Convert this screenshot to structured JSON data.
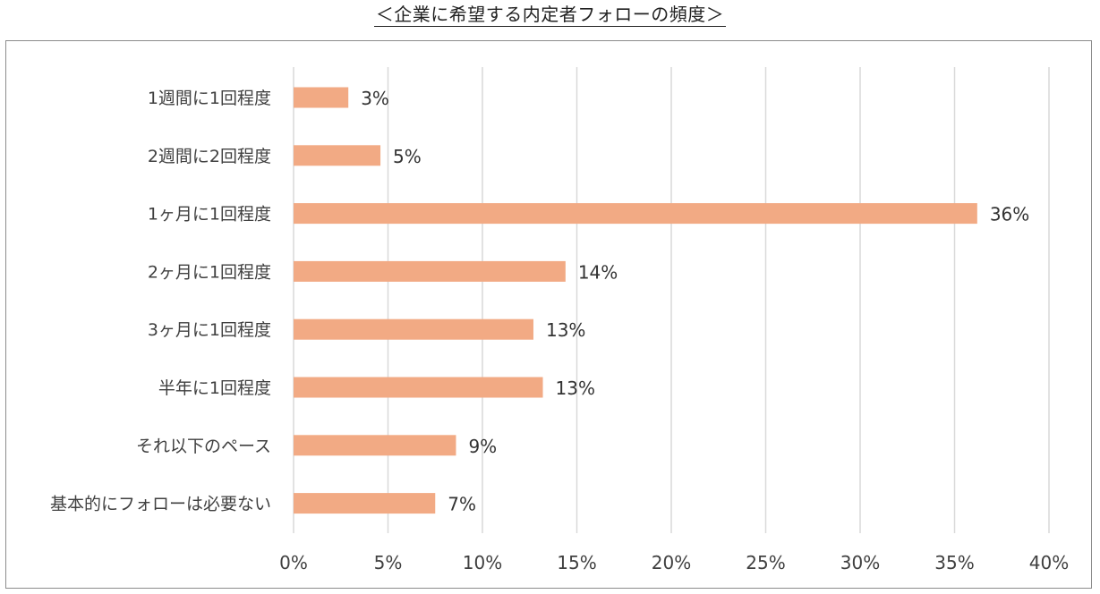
{
  "page": {
    "title": "＜企業に希望する内定者フォローの頻度＞"
  },
  "chart_data": {
    "type": "bar",
    "orientation": "horizontal",
    "title": "＜企業に希望する内定者フォローの頻度＞",
    "xlabel": "",
    "ylabel": "",
    "categories": [
      "1週間に1回程度",
      "2週間に2回程度",
      "1ヶ月に1回程度",
      "2ヶ月に1回程度",
      "3ヶ月に1回程度",
      "半年に1回程度",
      "それ以下のペース",
      "基本的にフォローは必要ない"
    ],
    "values": [
      2.9,
      4.6,
      36.2,
      14.4,
      12.7,
      13.2,
      8.6,
      7.5
    ],
    "value_labels": [
      "3%",
      "5%",
      "36%",
      "14%",
      "13%",
      "13%",
      "9%",
      "7%"
    ],
    "xlim": [
      0,
      40
    ],
    "ticks": [
      0,
      5,
      10,
      15,
      20,
      25,
      30,
      35,
      40
    ],
    "tick_labels": [
      "0%",
      "5%",
      "10%",
      "15%",
      "20%",
      "25%",
      "30%",
      "35%",
      "40%"
    ],
    "grid": "vertical",
    "legend": "none",
    "bar_color": "#F2AA84",
    "grid_color": "#D9D9D9"
  }
}
